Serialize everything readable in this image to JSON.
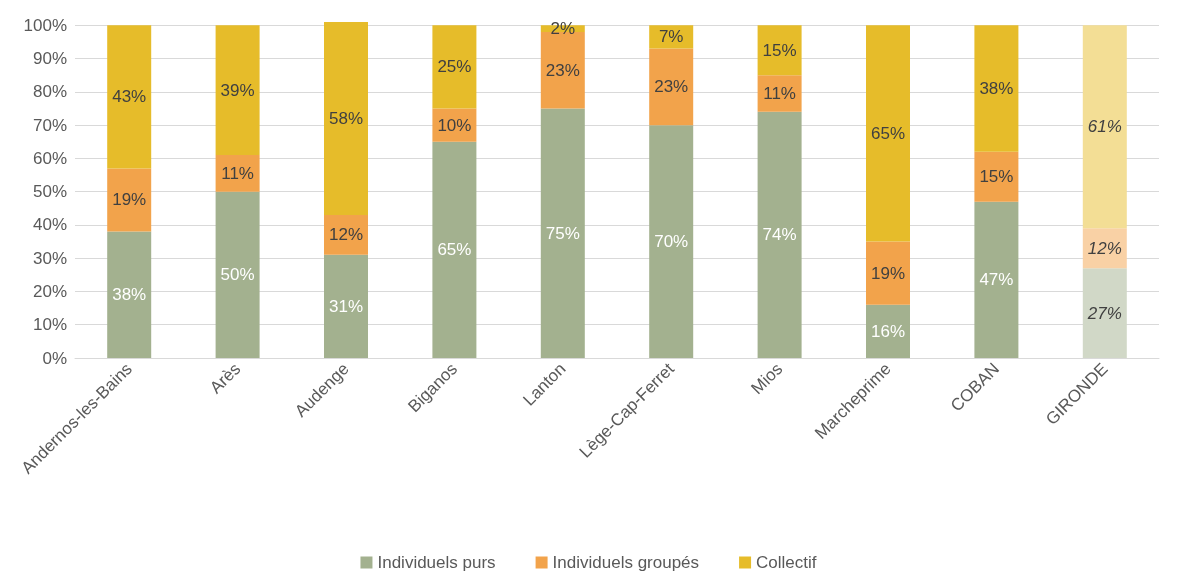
{
  "chart_data": {
    "type": "bar",
    "stacked": true,
    "categories": [
      "Andernos-les-Bains",
      "Arès",
      "Audenge",
      "Biganos",
      "Lanton",
      "Lège-Cap-Ferret",
      "Mios",
      "Marcheprime",
      "COBAN",
      "GIRONDE"
    ],
    "series": [
      {
        "name": "Individuels purs",
        "color": "#a3b18f",
        "colors": [
          "#a3b18f",
          "#a3b18f",
          "#a3b18f",
          "#a3b18f",
          "#a3b18f",
          "#a3b18f",
          "#a3b18f",
          "#a3b18f",
          "#a3b18f",
          "#d1d8c7"
        ],
        "values": [
          38,
          50,
          31,
          65,
          75,
          70,
          74,
          16,
          47,
          27
        ],
        "value_labels": [
          "38%",
          "50%",
          "31%",
          "65%",
          "75%",
          "70%",
          "74%",
          "16%",
          "47%",
          "27%"
        ]
      },
      {
        "name": "Individuels groupés",
        "color": "#f2a34b",
        "colors": [
          "#f2a34b",
          "#f2a34b",
          "#f2a34b",
          "#f2a34b",
          "#f2a34b",
          "#f2a34b",
          "#f2a34b",
          "#f2a34b",
          "#f2a34b",
          "#f9d1a5"
        ],
        "values": [
          19,
          11,
          12,
          10,
          23,
          23,
          11,
          19,
          15,
          12
        ],
        "value_labels": [
          "19%",
          "11%",
          "12%",
          "10%",
          "23%",
          "23%",
          "11%",
          "19%",
          "15%",
          "12%"
        ]
      },
      {
        "name": "Collectif",
        "color": "#e6bc2a",
        "colors": [
          "#e6bc2a",
          "#e6bc2a",
          "#e6bc2a",
          "#e6bc2a",
          "#e6bc2a",
          "#e6bc2a",
          "#e6bc2a",
          "#e6bc2a",
          "#e6bc2a",
          "#f3de95"
        ],
        "values": [
          43,
          39,
          58,
          25,
          2,
          7,
          15,
          65,
          38,
          61
        ],
        "value_labels": [
          "43%",
          "39%",
          "58%",
          "25%",
          "2%",
          "7%",
          "15%",
          "65%",
          "38%",
          "61%"
        ]
      }
    ],
    "ylim": [
      0,
      101
    ],
    "yticks": [
      {
        "value": 0,
        "label": "0%"
      },
      {
        "value": 10,
        "label": "10%"
      },
      {
        "value": 20,
        "label": "20%"
      },
      {
        "value": 30,
        "label": "30%"
      },
      {
        "value": 40,
        "label": "40%"
      },
      {
        "value": 50,
        "label": "50%"
      },
      {
        "value": 60,
        "label": "60%"
      },
      {
        "value": 70,
        "label": "70%"
      },
      {
        "value": 80,
        "label": "80%"
      },
      {
        "value": 90,
        "label": "90%"
      },
      {
        "value": 100,
        "label": "100%"
      }
    ],
    "grid": "y",
    "legend": "bottom"
  }
}
